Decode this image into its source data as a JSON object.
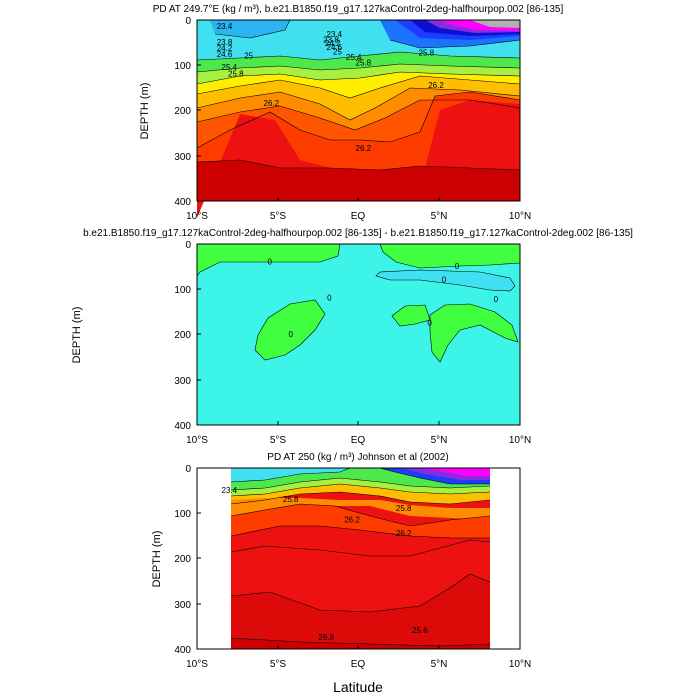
{
  "figure": {
    "xlabel": "Latitude",
    "x_ticks": [
      "10°S",
      "5°S",
      "EQ",
      "5°N",
      "10°N"
    ],
    "y_ticks": [
      "0",
      "100",
      "200",
      "300",
      "400"
    ]
  },
  "palette": {
    "cyan": "#40e0f0",
    "light_cyan": "#3cf4e8",
    "sky": "#2ab4f0",
    "blue_light": "#1a74ff",
    "blue": "#1e3cff",
    "navy": "#0a10d0",
    "violet": "#8a2be2",
    "purple": "#b000ff",
    "magenta": "#ff00ff",
    "pink": "#ff66ff",
    "green_bright": "#40ff40",
    "green": "#4ce84c",
    "yellow_green": "#a8f040",
    "yellow": "#ffee00",
    "gold": "#ffbf00",
    "orange": "#ff8c00",
    "dark_orange": "#ff5500",
    "red_orange": "#ff3c00",
    "red": "#ee1111",
    "dark_red": "#cc0000",
    "gray": "#b0b0b0"
  },
  "chart_data": [
    {
      "type": "contour",
      "title": "PD AT 249.7°E (kg / m³), b.e21.B1850.f19_g17.127kaControl-2deg-halfhourpop.002 [86-135]",
      "ylabel": "DEPTH (m)",
      "x": [
        "10°S",
        "5°S",
        "EQ",
        "5°N",
        "10°N"
      ],
      "xlim": [
        -10,
        10
      ],
      "ylim": [
        400,
        0
      ],
      "contour_labels": [
        "23.4",
        "23.8",
        "24.2",
        "24.6",
        "25",
        "25.4",
        "25.8",
        "26.2",
        "23.4",
        "23.8",
        "24.2",
        "24.6",
        "25",
        "25.4",
        "25.8",
        "26.2",
        "25.8",
        "26.2"
      ],
      "contour_label_positions_data": [
        [
          -8.3,
          20
        ],
        [
          -8.3,
          55
        ],
        [
          -8.3,
          68
        ],
        [
          -8.3,
          82
        ],
        [
          -6.8,
          85
        ],
        [
          -8.0,
          110
        ],
        [
          -7.6,
          125
        ],
        [
          -5.4,
          190
        ],
        [
          -1.5,
          38
        ],
        [
          -1.7,
          50
        ],
        [
          -1.6,
          58
        ],
        [
          -1.5,
          66
        ],
        [
          -1.3,
          76
        ],
        [
          -0.3,
          88
        ],
        [
          0.3,
          100
        ],
        [
          0.3,
          290
        ],
        [
          4.2,
          78
        ],
        [
          4.8,
          150
        ]
      ],
      "levels_min": 23.4,
      "levels_max": 26.8,
      "level_interval": 0.2
    },
    {
      "type": "contour",
      "title": "b.e21.B1850.f19_g17.127kaControl-2deg-halfhourpop.002 [86-135] - b.e21.B1850.f19_g17.127kaControl-2deg.002 [86-135]",
      "ylabel": "DEPTH (m)",
      "x": [
        "10°S",
        "5°S",
        "EQ",
        "5°N",
        "10°N"
      ],
      "xlim": [
        -10,
        10
      ],
      "ylim": [
        400,
        0
      ],
      "contour_labels": [
        "0",
        "0",
        "0",
        "0",
        "0",
        "0",
        "0"
      ],
      "contour_label_positions_data": [
        [
          -5.5,
          45
        ],
        [
          -4.2,
          205
        ],
        [
          -1.8,
          125
        ],
        [
          6.1,
          55
        ],
        [
          5.3,
          85
        ],
        [
          4.4,
          180
        ],
        [
          8.5,
          128
        ]
      ]
    },
    {
      "type": "contour",
      "title": "PD AT 250 (kg / m³) Johnson et al (2002)",
      "ylabel": "DEPTH (m)",
      "x": [
        "10°S",
        "5°S",
        "EQ",
        "5°N",
        "10°N"
      ],
      "xlim": [
        -10,
        10
      ],
      "ylim": [
        400,
        0
      ],
      "data_xrange": [
        -8.1,
        8.1
      ],
      "contour_labels": [
        "23.4",
        "25.8",
        "26.2",
        "26.2",
        "25.8",
        "26.8",
        "25.6"
      ],
      "contour_label_positions_data": [
        [
          -8.0,
          55
        ],
        [
          -4.2,
          75
        ],
        [
          -0.4,
          120
        ],
        [
          2.8,
          150
        ],
        [
          2.8,
          95
        ],
        [
          -2.0,
          380
        ],
        [
          3.8,
          365
        ]
      ]
    }
  ]
}
